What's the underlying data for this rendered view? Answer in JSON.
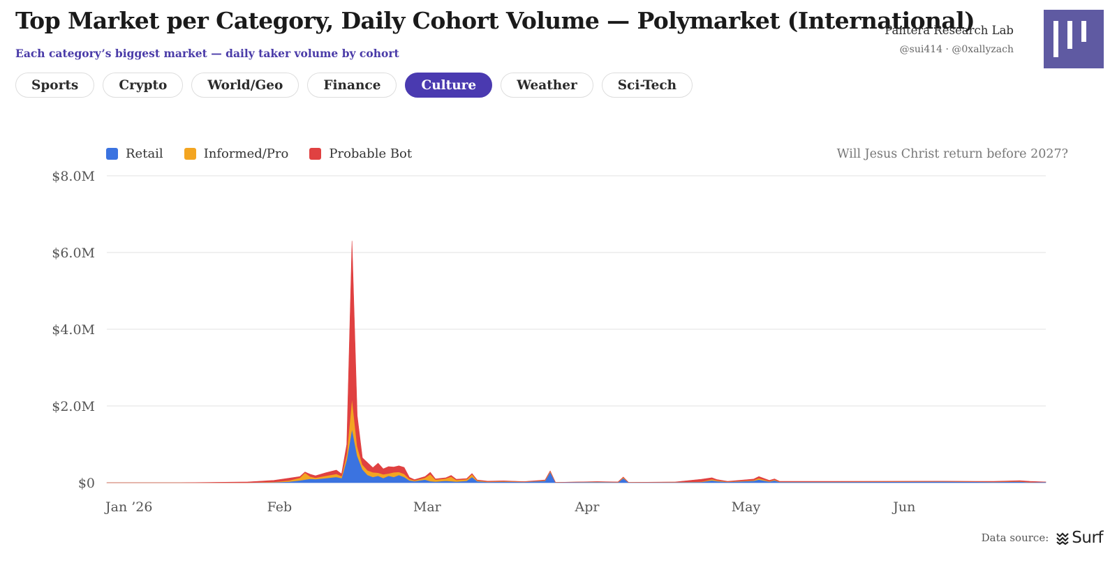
{
  "header": {
    "title": "Top Market per Category, Daily Cohort Volume — Polymarket (International)",
    "subtitle": "Each category’s biggest market — daily taker volume by cohort",
    "brand_name": "Pantera Research Lab",
    "brand_handles": "@sui414 · @0xallyzach",
    "logo_icon": "pantera-logo-icon"
  },
  "tabs": [
    {
      "label": "Sports",
      "active": false
    },
    {
      "label": "Crypto",
      "active": false
    },
    {
      "label": "World/Geo",
      "active": false
    },
    {
      "label": "Finance",
      "active": false
    },
    {
      "label": "Culture",
      "active": true
    },
    {
      "label": "Weather",
      "active": false
    },
    {
      "label": "Sci-Tech",
      "active": false
    }
  ],
  "colors": {
    "retail": "#3b73e0",
    "informed": "#f3a521",
    "bot": "#e04141",
    "accent": "#4a3ab0"
  },
  "footer": {
    "label": "Data source:",
    "source": "Surf",
    "source_icon": "surf-logo-icon"
  },
  "chart_data": {
    "type": "area",
    "stacked": true,
    "title": "Will Jesus Christ return before 2027?",
    "xlabel": "",
    "ylabel": "",
    "y_unit": "USD",
    "ylim": [
      0,
      8000000
    ],
    "yticks": [
      {
        "value": 0,
        "label": "$0"
      },
      {
        "value": 2000000,
        "label": "$2.0M"
      },
      {
        "value": 4000000,
        "label": "$4.0M"
      },
      {
        "value": 6000000,
        "label": "$6.0M"
      },
      {
        "value": 8000000,
        "label": "$8.0M"
      }
    ],
    "xlim": [
      "2026-01-01",
      "2026-06-30"
    ],
    "xticks": [
      {
        "value": "2026-01-01",
        "label": "Jan ’26"
      },
      {
        "value": "2026-02-01",
        "label": "Feb"
      },
      {
        "value": "2026-03-01",
        "label": "Mar"
      },
      {
        "value": "2026-04-01",
        "label": "Apr"
      },
      {
        "value": "2026-05-01",
        "label": "May"
      },
      {
        "value": "2026-06-01",
        "label": "Jun"
      }
    ],
    "grid": true,
    "legend_position": "top-left",
    "x": [
      "2026-01-01",
      "2026-01-15",
      "2026-01-28",
      "2026-02-02",
      "2026-02-05",
      "2026-02-07",
      "2026-02-08",
      "2026-02-09",
      "2026-02-10",
      "2026-02-12",
      "2026-02-14",
      "2026-02-15",
      "2026-02-16",
      "2026-02-17",
      "2026-02-18",
      "2026-02-19",
      "2026-02-20",
      "2026-02-21",
      "2026-02-22",
      "2026-02-23",
      "2026-02-24",
      "2026-02-25",
      "2026-02-26",
      "2026-02-27",
      "2026-02-28",
      "2026-03-01",
      "2026-03-03",
      "2026-03-04",
      "2026-03-05",
      "2026-03-07",
      "2026-03-08",
      "2026-03-09",
      "2026-03-11",
      "2026-03-12",
      "2026-03-13",
      "2026-03-15",
      "2026-03-18",
      "2026-03-22",
      "2026-03-26",
      "2026-03-27",
      "2026-03-28",
      "2026-04-05",
      "2026-04-09",
      "2026-04-10",
      "2026-04-11",
      "2026-04-20",
      "2026-04-25",
      "2026-04-27",
      "2026-04-28",
      "2026-04-30",
      "2026-05-05",
      "2026-05-06",
      "2026-05-08",
      "2026-05-09",
      "2026-05-10",
      "2026-05-20",
      "2026-06-10",
      "2026-06-20",
      "2026-06-25",
      "2026-06-27",
      "2026-06-30"
    ],
    "series": [
      {
        "name": "Retail",
        "values": [
          0,
          0,
          0,
          10000,
          30000,
          60000,
          80000,
          100000,
          90000,
          120000,
          150000,
          120000,
          600000,
          1400000,
          700000,
          350000,
          200000,
          150000,
          180000,
          120000,
          180000,
          150000,
          200000,
          150000,
          60000,
          40000,
          80000,
          40000,
          30000,
          50000,
          40000,
          30000,
          50000,
          150000,
          40000,
          20000,
          30000,
          20000,
          50000,
          280000,
          10000,
          20000,
          10000,
          120000,
          10000,
          10000,
          20000,
          60000,
          40000,
          20000,
          50000,
          80000,
          30000,
          60000,
          20000,
          20000,
          30000,
          20000,
          30000,
          10000,
          20000
        ]
      },
      {
        "name": "Informed/Pro",
        "values": [
          0,
          0,
          0,
          10000,
          30000,
          70000,
          180000,
          60000,
          40000,
          60000,
          80000,
          50000,
          150000,
          800000,
          250000,
          120000,
          120000,
          120000,
          80000,
          100000,
          60000,
          120000,
          80000,
          80000,
          40000,
          20000,
          50000,
          180000,
          50000,
          60000,
          120000,
          40000,
          40000,
          70000,
          20000,
          10000,
          10000,
          5000,
          10000,
          20000,
          0,
          5000,
          5000,
          20000,
          0,
          5000,
          10000,
          30000,
          20000,
          5000,
          15000,
          40000,
          10000,
          20000,
          5000,
          5000,
          5000,
          5000,
          5000,
          5000,
          0
        ]
      },
      {
        "name": "Probable Bot",
        "values": [
          0,
          0,
          20000,
          40000,
          60000,
          30000,
          20000,
          60000,
          50000,
          80000,
          100000,
          60000,
          250000,
          4100000,
          800000,
          180000,
          200000,
          120000,
          250000,
          140000,
          180000,
          140000,
          160000,
          170000,
          40000,
          20000,
          30000,
          50000,
          20000,
          20000,
          30000,
          20000,
          20000,
          20000,
          10000,
          10000,
          10000,
          5000,
          10000,
          10000,
          0,
          5000,
          5000,
          10000,
          0,
          5000,
          60000,
          40000,
          20000,
          10000,
          30000,
          40000,
          20000,
          20000,
          10000,
          10000,
          5000,
          10000,
          20000,
          20000,
          0
        ]
      }
    ]
  }
}
